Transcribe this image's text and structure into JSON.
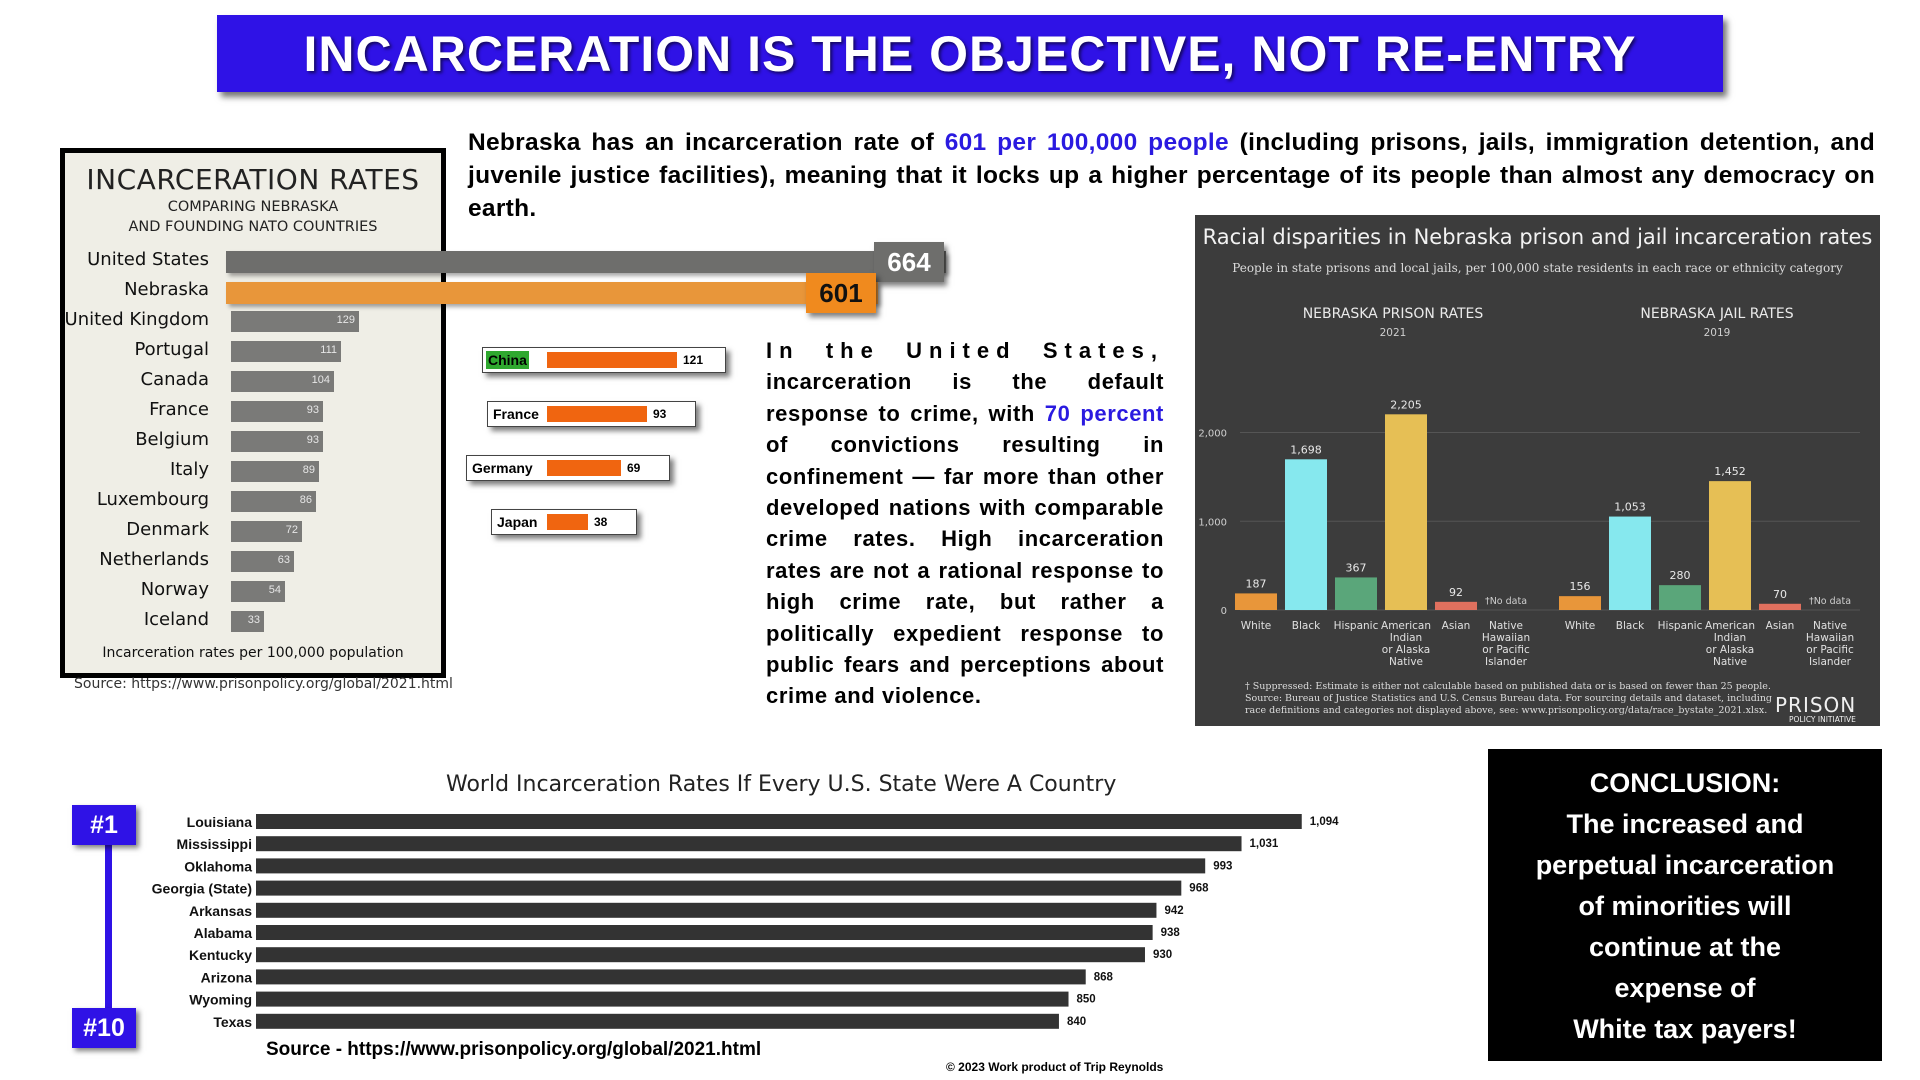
{
  "banner": {
    "text": "INCARCERATION IS THE OBJECTIVE, NOT RE-ENTRY"
  },
  "intro": {
    "before": "Nebraska has an incarceration rate of ",
    "highlight": "601 per 100,000 people",
    "after": " (including prisons, jails, immigration detention, and juvenile justice facilities), meaning that it locks up a higher percentage of its people than almost any democracy on earth."
  },
  "middle": {
    "first": "In the United States,",
    "part1": " incarceration is the default response to crime, with ",
    "highlight": "70 percent",
    "part2": " of convictions resulting in confinement — far more than other developed nations with comparable crime rates. High incarceration rates are not a rational response to high crime rate, but rather a politically expedient response to public fears and perceptions about crime and violence."
  },
  "conclusion": {
    "lines": [
      "CONCLUSION:",
      "The increased and",
      "perpetual incarceration",
      "of minorities will",
      "continue at the",
      "expense of",
      "White tax payers!"
    ]
  },
  "source1": "Source: https://www.prisonpolicy.org/global/2021.html",
  "source2": "Source - https://www.prisonpolicy.org/global/2021.html",
  "copyright": "© 2023 Work product of Trip Reynolds",
  "colors": {
    "banner": "#2f12e6",
    "highlight": "#2a1ae0",
    "orange": "#e8963a",
    "gray": "#6e6e6c"
  },
  "chart_data": [
    {
      "type": "bar",
      "title": "INCARCERATION RATES",
      "subtitle": "COMPARING NEBRASKA AND FOUNDING NATO COUNTRIES",
      "subtitle_lines": [
        "COMPARING NEBRASKA",
        "AND FOUNDING NATO COUNTRIES"
      ],
      "footnote": "Incarceration rates per 100,000 population",
      "categories": [
        "United States",
        "Nebraska",
        "United Kingdom",
        "Portugal",
        "Canada",
        "France",
        "Belgium",
        "Italy",
        "Luxembourg",
        "Denmark",
        "Netherlands",
        "Norway",
        "Iceland"
      ],
      "values": [
        664,
        601,
        129,
        111,
        104,
        93,
        93,
        89,
        86,
        72,
        63,
        54,
        33
      ],
      "value_labels": [
        "664",
        "601",
        "129",
        "111",
        "104",
        "93",
        "93",
        "89",
        "86",
        "72",
        "63",
        "54",
        "33"
      ],
      "orientation": "horizontal"
    },
    {
      "type": "bar",
      "categories": [
        "China",
        "France",
        "Germany",
        "Japan"
      ],
      "values": [
        121,
        93,
        69,
        38
      ],
      "value_labels": [
        "121",
        "93",
        "69",
        "38"
      ],
      "orientation": "horizontal"
    },
    {
      "type": "bar",
      "title": "Racial disparities in Nebraska prison and jail incarceration rates",
      "subtitle": "People in state prisons and local jails, per 100,000 state residents in each race or ethnicity category",
      "categories": [
        "White",
        "Black",
        "Hispanic",
        "American Indian or Alaska Native",
        "Asian",
        "Native Hawaiian or Pacific Islander"
      ],
      "category_lines": [
        [
          "White"
        ],
        [
          "Black"
        ],
        [
          "Hispanic"
        ],
        [
          "American",
          "Indian",
          "or Alaska",
          "Native"
        ],
        [
          "Asian"
        ],
        [
          "Native",
          "Hawaiian",
          "or Pacific",
          "Islander"
        ]
      ],
      "ylim": [
        0,
        2400
      ],
      "yticks": [
        0,
        1000,
        2000
      ],
      "ytick_labels": [
        "0",
        "1,000",
        "2,000"
      ],
      "bar_colors": [
        "#e8963a",
        "#86e8ee",
        "#5aa67a",
        "#e6bf55",
        "#e0705e",
        "#888888"
      ],
      "no_data_label": "†No data",
      "panels": [
        {
          "name": "NEBRASKA PRISON RATES",
          "year": "2021",
          "values": [
            187,
            1698,
            367,
            2205,
            92,
            null
          ],
          "value_labels": [
            "187",
            "1,698",
            "367",
            "2,205",
            "92",
            "†No data"
          ]
        },
        {
          "name": "NEBRASKA JAIL RATES",
          "year": "2019",
          "values": [
            156,
            1053,
            280,
            1452,
            70,
            null
          ],
          "value_labels": [
            "156",
            "1,053",
            "280",
            "1,452",
            "70",
            "†No data"
          ]
        }
      ],
      "footnotes": [
        "† Suppressed: Estimate is either not calculable based on published data or is based on fewer than 25 people.",
        "Source: Bureau of Justice Statistics and U.S. Census Bureau data. For sourcing details and dataset, including",
        "race definitions and categories not displayed above, see: www.prisonpolicy.org/data/race_bystate_2021.xlsx."
      ],
      "logo": {
        "line1": "PRISON",
        "line2": "POLICY INITIATIVE"
      }
    },
    {
      "type": "bar",
      "title": "World Incarceration Rates If Every U.S. State Were A Country",
      "categories": [
        "Louisiana",
        "Mississippi",
        "Oklahoma",
        "Georgia (State)",
        "Arkansas",
        "Alabama",
        "Kentucky",
        "Arizona",
        "Wyoming",
        "Texas"
      ],
      "values": [
        1094,
        1031,
        993,
        968,
        942,
        938,
        930,
        868,
        850,
        840
      ],
      "value_labels": [
        "1,094",
        "1,031",
        "993",
        "968",
        "942",
        "938",
        "930",
        "868",
        "850",
        "840"
      ],
      "rank_labels": [
        "#1",
        "#10"
      ],
      "orientation": "horizontal"
    }
  ]
}
